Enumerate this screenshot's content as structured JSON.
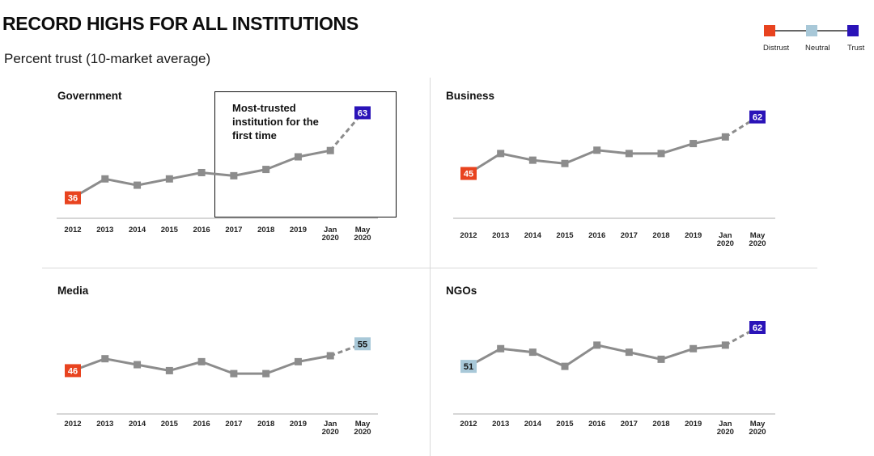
{
  "header": {
    "title": "RECORD HIGHS FOR ALL INSTITUTIONS",
    "subtitle": "Percent trust (10-market average)"
  },
  "legend": {
    "items": [
      {
        "label": "Distrust",
        "color": "#e8431f"
      },
      {
        "label": "Neutral",
        "color": "#a8c8d8"
      },
      {
        "label": "Trust",
        "color": "#2a13b8"
      }
    ]
  },
  "colors": {
    "line": "#8c8c8c",
    "marker": "#8c8c8c",
    "axis": "#c8c8c8",
    "distrust": "#e8431f",
    "neutral": "#a8c8d8",
    "trust": "#2a13b8"
  },
  "callout": {
    "text": "Most-trusted institution for the first time"
  },
  "chart_data": [
    {
      "type": "line",
      "title": "Government",
      "categories": [
        "2012",
        "2013",
        "2014",
        "2015",
        "2016",
        "2017",
        "2018",
        "2019",
        "Jan 2020",
        "May 2020"
      ],
      "tick_labels": [
        [
          "2012"
        ],
        [
          "2013"
        ],
        [
          "2014"
        ],
        [
          "2015"
        ],
        [
          "2016"
        ],
        [
          "2017"
        ],
        [
          "2018"
        ],
        [
          "2019"
        ],
        [
          "Jan",
          "2020"
        ],
        [
          "May",
          "2020"
        ]
      ],
      "values": [
        36,
        42,
        40,
        42,
        44,
        43,
        45,
        49,
        51,
        63
      ],
      "ylim": [
        30,
        68
      ],
      "dashed_last_segment": true,
      "labeled_points": [
        {
          "index": 0,
          "label": "36",
          "status": "distrust"
        },
        {
          "index": 9,
          "label": "63",
          "status": "trust"
        }
      ],
      "annotation": "Most-trusted institution for the first time"
    },
    {
      "type": "line",
      "title": "Business",
      "categories": [
        "2012",
        "2013",
        "2014",
        "2015",
        "2016",
        "2017",
        "2018",
        "2019",
        "Jan 2020",
        "May 2020"
      ],
      "tick_labels": [
        [
          "2012"
        ],
        [
          "2013"
        ],
        [
          "2014"
        ],
        [
          "2015"
        ],
        [
          "2016"
        ],
        [
          "2017"
        ],
        [
          "2018"
        ],
        [
          "2019"
        ],
        [
          "Jan",
          "2020"
        ],
        [
          "May",
          "2020"
        ]
      ],
      "values": [
        45,
        51,
        49,
        48,
        52,
        51,
        51,
        54,
        56,
        62
      ],
      "ylim": [
        32,
        68
      ],
      "dashed_last_segment": true,
      "labeled_points": [
        {
          "index": 0,
          "label": "45",
          "status": "distrust"
        },
        {
          "index": 9,
          "label": "62",
          "status": "trust"
        }
      ]
    },
    {
      "type": "line",
      "title": "Media",
      "categories": [
        "2012",
        "2013",
        "2014",
        "2015",
        "2016",
        "2017",
        "2018",
        "2019",
        "Jan 2020",
        "May 2020"
      ],
      "tick_labels": [
        [
          "2012"
        ],
        [
          "2013"
        ],
        [
          "2014"
        ],
        [
          "2015"
        ],
        [
          "2016"
        ],
        [
          "2017"
        ],
        [
          "2018"
        ],
        [
          "2019"
        ],
        [
          "Jan",
          "2020"
        ],
        [
          "May",
          "2020"
        ]
      ],
      "values": [
        46,
        50,
        48,
        46,
        49,
        45,
        45,
        49,
        51,
        55
      ],
      "ylim": [
        32,
        70
      ],
      "dashed_last_segment": true,
      "labeled_points": [
        {
          "index": 0,
          "label": "46",
          "status": "distrust"
        },
        {
          "index": 9,
          "label": "55",
          "status": "neutral"
        }
      ]
    },
    {
      "type": "line",
      "title": "NGOs",
      "categories": [
        "2012",
        "2013",
        "2014",
        "2015",
        "2016",
        "2017",
        "2018",
        "2019",
        "Jan 2020",
        "May 2020"
      ],
      "tick_labels": [
        [
          "2012"
        ],
        [
          "2013"
        ],
        [
          "2014"
        ],
        [
          "2015"
        ],
        [
          "2016"
        ],
        [
          "2017"
        ],
        [
          "2018"
        ],
        [
          "2019"
        ],
        [
          "Jan",
          "2020"
        ],
        [
          "May",
          "2020"
        ]
      ],
      "values": [
        51,
        56,
        55,
        51,
        57,
        55,
        53,
        56,
        57,
        62
      ],
      "ylim": [
        38,
        70
      ],
      "dashed_last_segment": true,
      "labeled_points": [
        {
          "index": 0,
          "label": "51",
          "status": "neutral"
        },
        {
          "index": 9,
          "label": "62",
          "status": "trust"
        }
      ]
    }
  ]
}
